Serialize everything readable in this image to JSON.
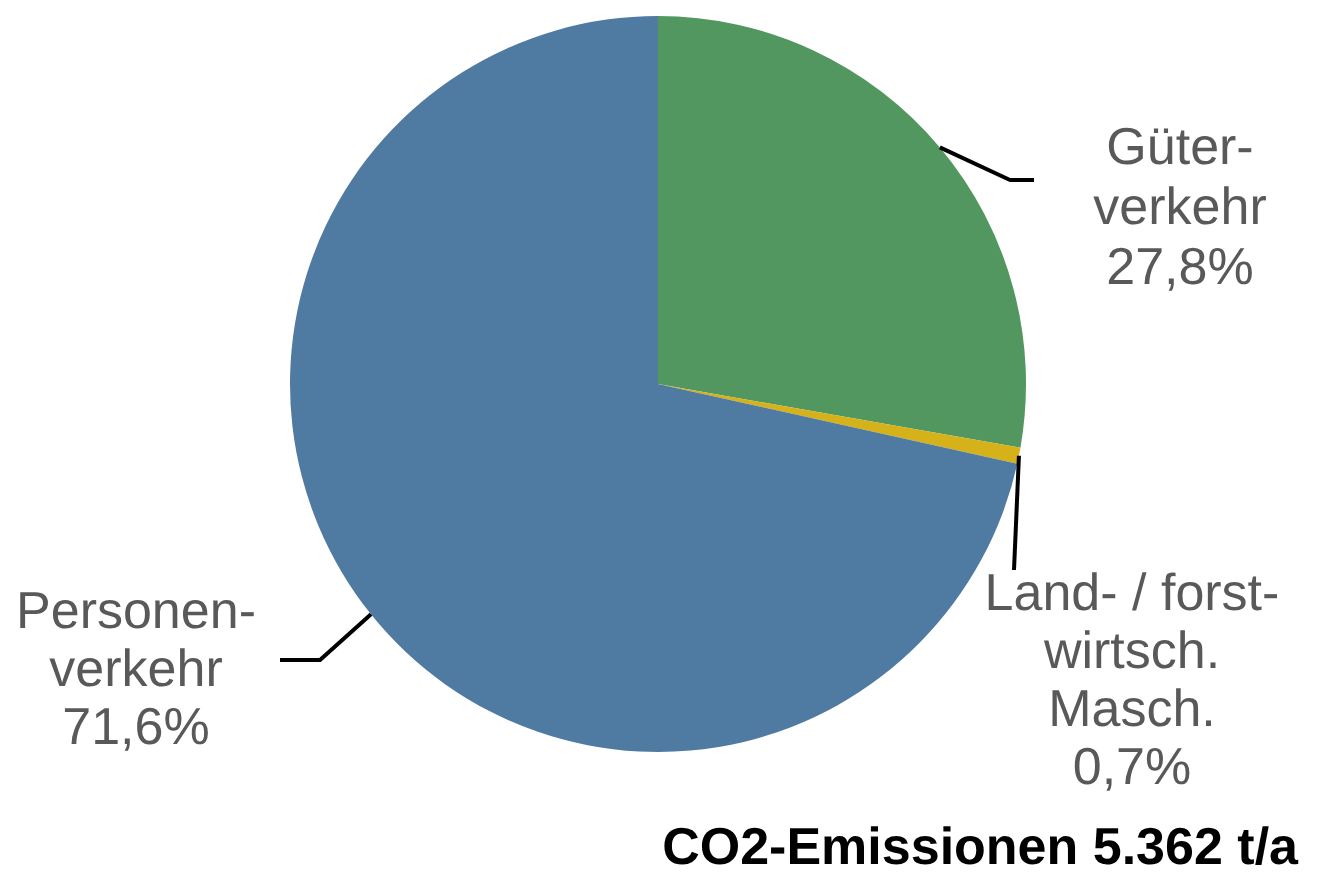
{
  "chart_data": {
    "type": "pie",
    "categories": [
      "Güter-\nverkehr",
      "Land- / forst-\nwirtsch.\nMasch.",
      "Personen-\nverkehr"
    ],
    "values": [
      27.8,
      0.7,
      71.6
    ],
    "colors": [
      "#539760",
      "#d6b21a",
      "#4f7aa2"
    ],
    "value_labels": [
      "27,8%",
      "0,7%",
      "71,6%"
    ],
    "legend": false,
    "annotations": [
      "CO2-Emissionen 5.362 t/a"
    ]
  }
}
